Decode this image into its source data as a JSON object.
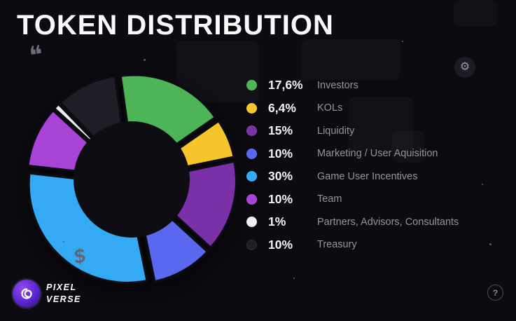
{
  "header": {
    "title": "TOKEN DISTRIBUTION"
  },
  "chart_data": {
    "type": "pie",
    "title": "TOKEN DISTRIBUTION",
    "donut": true,
    "direction": "clockwise",
    "start_angle_deg": -8,
    "legend_position": "right",
    "total": 100,
    "segments": [
      {
        "label": "Investors",
        "value": 17.6,
        "pct_label": "17,6%",
        "color": "#4db457"
      },
      {
        "label": "KOLs",
        "value": 6.4,
        "pct_label": "6,4%",
        "color": "#f5c52a"
      },
      {
        "label": "Liquidity",
        "value": 15,
        "pct_label": "15%",
        "color": "#7a31a8"
      },
      {
        "label": "Marketing / User Aquisition",
        "value": 10,
        "pct_label": "10%",
        "color": "#5a68ef"
      },
      {
        "label": "Game User Incentives",
        "value": 30,
        "pct_label": "30%",
        "color": "#34a9f4"
      },
      {
        "label": "Team",
        "value": 10,
        "pct_label": "10%",
        "color": "#a843d6"
      },
      {
        "label": "Partners, Advisors, Consultants",
        "value": 1,
        "pct_label": "1%",
        "color": "#efeff3"
      },
      {
        "label": "Treasury",
        "value": 10,
        "pct_label": "10%",
        "color": "#1e1e27"
      }
    ]
  },
  "logo": {
    "line1": "PIXEL",
    "line2": "VERSE"
  },
  "decor": {
    "quote_icon": "❝",
    "gear_icon": "⚙",
    "dollar_icon": "$",
    "help_icon": "?"
  }
}
